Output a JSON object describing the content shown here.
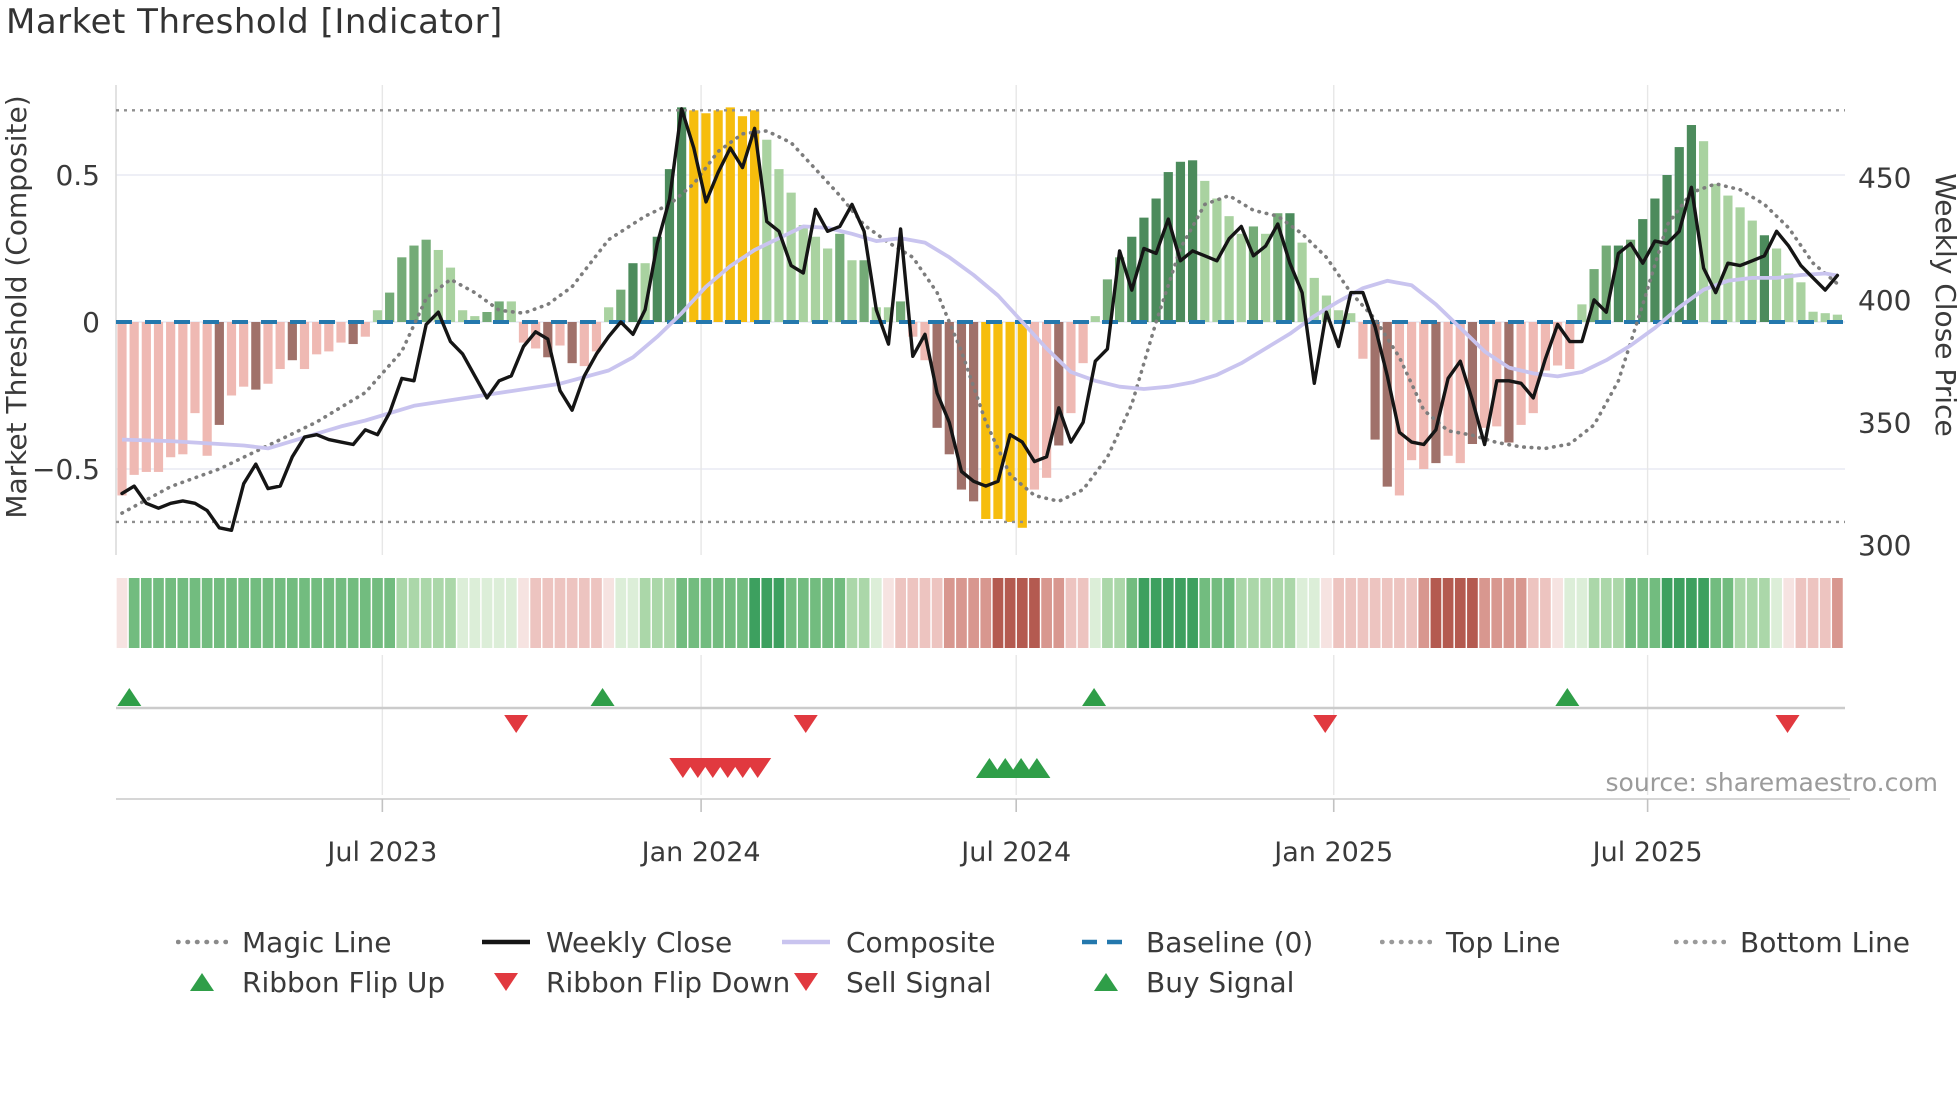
{
  "title": "Market Threshold [Indicator]",
  "source": "source: sharemaestro.com",
  "chart_data": {
    "type": "bar+line",
    "x_unit": "week",
    "weeks_total": 142,
    "x_ticks": [
      {
        "week": 21.4,
        "label": "Jul 2023"
      },
      {
        "week": 47.6,
        "label": "Jan 2024"
      },
      {
        "week": 73.5,
        "label": "Jul 2024"
      },
      {
        "week": 99.6,
        "label": "Jan 2025"
      },
      {
        "week": 125.4,
        "label": "Jul 2025"
      }
    ],
    "left_axis": {
      "label": "Market Threshold (Composite)",
      "ticks": [
        0.5,
        0,
        -0.5
      ],
      "tick_labels": [
        "0.5",
        "0",
        "−0.5"
      ],
      "range": [
        -0.81,
        0.81
      ]
    },
    "right_axis": {
      "label": "Weekly Close Price",
      "ticks": [
        450,
        400,
        350,
        300
      ],
      "tick_labels": [
        "450",
        "400",
        "350",
        "300"
      ],
      "price_at_zero_composite": 391,
      "price_per_composite_unit": 120
    },
    "reference_lines": {
      "top_line": 0.72,
      "bottom_line": -0.68,
      "baseline": 0
    },
    "grid": {
      "h_gridlines_at": [
        0.5,
        0,
        -0.5
      ],
      "v_gridlines_at_ticks": true
    },
    "threshold_bars": {
      "palette": {
        "p": "#efb9b3",
        "d": "#a0716a",
        "y": "#f6bd0d",
        "l": "#a9d2a0",
        "g": "#74ab77",
        "G": "#4c8b5c"
      },
      "values": [
        -0.59,
        -0.52,
        -0.51,
        -0.51,
        -0.46,
        -0.45,
        -0.31,
        -0.455,
        -0.35,
        -0.25,
        -0.22,
        -0.23,
        -0.21,
        -0.16,
        -0.13,
        -0.16,
        -0.11,
        -0.1,
        -0.07,
        -0.075,
        -0.05,
        0.04,
        0.1,
        0.22,
        0.26,
        0.28,
        0.245,
        0.185,
        0.04,
        0.02,
        0.034,
        0.07,
        0.07,
        -0.07,
        -0.09,
        -0.12,
        -0.08,
        -0.14,
        -0.15,
        -0.1,
        0.05,
        0.11,
        0.2,
        0.2,
        0.29,
        0.52,
        0.73,
        0.72,
        0.71,
        0.72,
        0.73,
        0.7,
        0.72,
        0.62,
        0.52,
        0.44,
        0.33,
        0.29,
        0.25,
        0.3,
        0.21,
        0.21,
        0.05,
        0.05,
        0.07,
        -0.05,
        -0.13,
        -0.36,
        -0.45,
        -0.57,
        -0.61,
        -0.67,
        -0.67,
        -0.68,
        -0.7,
        -0.57,
        -0.53,
        -0.42,
        -0.31,
        -0.14,
        0.02,
        0.145,
        0.22,
        0.29,
        0.355,
        0.42,
        0.51,
        0.545,
        0.55,
        0.48,
        0.42,
        0.36,
        0.3,
        0.325,
        0.3,
        0.37,
        0.37,
        0.27,
        0.15,
        0.09,
        0.04,
        0.03,
        -0.125,
        -0.4,
        -0.56,
        -0.59,
        -0.47,
        -0.5,
        -0.48,
        -0.455,
        -0.48,
        -0.415,
        -0.36,
        -0.355,
        -0.41,
        -0.35,
        -0.31,
        -0.165,
        -0.148,
        -0.16,
        0.06,
        0.18,
        0.26,
        0.26,
        0.28,
        0.35,
        0.42,
        0.5,
        0.595,
        0.67,
        0.615,
        0.47,
        0.43,
        0.39,
        0.345,
        0.295,
        0.25,
        0.165,
        0.135,
        0.035,
        0.03,
        0.025
      ],
      "colors": [
        "p",
        "p",
        "p",
        "p",
        "p",
        "p",
        "p",
        "p",
        "d",
        "p",
        "p",
        "d",
        "p",
        "p",
        "d",
        "p",
        "p",
        "p",
        "p",
        "d",
        "p",
        "l",
        "g",
        "g",
        "g",
        "g",
        "l",
        "l",
        "l",
        "l",
        "g",
        "g",
        "l",
        "p",
        "p",
        "d",
        "p",
        "d",
        "p",
        "p",
        "l",
        "g",
        "G",
        "l",
        "G",
        "G",
        "G",
        "y",
        "y",
        "y",
        "y",
        "y",
        "y",
        "l",
        "l",
        "l",
        "l",
        "l",
        "l",
        "g",
        "l",
        "g",
        "l",
        "l",
        "g",
        "p",
        "p",
        "d",
        "d",
        "d",
        "d",
        "y",
        "y",
        "y",
        "y",
        "p",
        "p",
        "d",
        "p",
        "p",
        "l",
        "g",
        "g",
        "G",
        "G",
        "G",
        "G",
        "G",
        "G",
        "l",
        "l",
        "l",
        "l",
        "g",
        "l",
        "g",
        "G",
        "l",
        "l",
        "l",
        "l",
        "l",
        "p",
        "d",
        "d",
        "p",
        "p",
        "p",
        "d",
        "p",
        "p",
        "d",
        "p",
        "p",
        "d",
        "p",
        "p",
        "p",
        "p",
        "p",
        "l",
        "g",
        "g",
        "G",
        "g",
        "G",
        "G",
        "G",
        "G",
        "G",
        "l",
        "l",
        "l",
        "l",
        "l",
        "G",
        "l",
        "l",
        "l",
        "l",
        "l",
        "l"
      ]
    },
    "weekly_close": [
      321,
      324,
      317,
      315,
      317,
      318,
      317,
      314,
      307,
      306,
      325,
      333,
      323,
      324,
      336,
      344,
      345,
      343,
      342,
      341,
      347,
      345,
      354,
      368,
      367,
      390,
      395,
      383,
      378,
      369,
      360,
      367,
      369,
      381,
      387,
      384,
      363,
      355,
      369,
      378,
      385,
      391,
      386,
      396,
      423,
      441,
      478,
      462,
      440,
      452,
      462,
      454,
      470,
      432,
      428,
      414,
      411,
      437,
      428,
      430,
      439,
      428,
      396,
      382,
      429,
      377,
      386,
      362,
      350,
      330,
      326,
      324,
      326,
      345,
      342,
      334,
      336,
      356,
      342,
      350,
      375,
      380,
      420,
      404,
      421,
      419,
      433,
      416,
      420,
      418,
      416,
      425,
      430,
      418,
      422,
      431,
      415,
      403,
      366,
      395,
      381,
      403,
      403,
      389,
      369,
      346,
      342,
      341,
      347,
      368,
      375,
      359,
      341,
      367,
      367,
      366,
      360,
      376,
      390,
      383,
      383,
      400,
      395,
      419,
      423,
      415,
      424,
      423,
      428,
      446,
      413,
      403,
      415,
      414,
      416,
      418,
      428,
      422,
      414,
      409,
      404,
      410
    ],
    "magic_line_points": [
      [
        0,
        -0.65
      ],
      [
        4,
        -0.56
      ],
      [
        8,
        -0.5
      ],
      [
        12,
        -0.42
      ],
      [
        16,
        -0.34
      ],
      [
        20,
        -0.24
      ],
      [
        23,
        -0.1
      ],
      [
        25,
        0.08
      ],
      [
        27,
        0.145
      ],
      [
        29,
        0.1
      ],
      [
        31,
        0.04
      ],
      [
        33,
        0.03
      ],
      [
        35,
        0.06
      ],
      [
        37,
        0.12
      ],
      [
        40,
        0.28
      ],
      [
        43,
        0.36
      ],
      [
        45,
        0.4
      ],
      [
        47,
        0.47
      ],
      [
        49,
        0.58
      ],
      [
        51,
        0.64
      ],
      [
        53,
        0.65
      ],
      [
        55,
        0.61
      ],
      [
        57,
        0.52
      ],
      [
        59,
        0.43
      ],
      [
        61,
        0.33
      ],
      [
        63,
        0.27
      ],
      [
        65,
        0.22
      ],
      [
        67,
        0.1
      ],
      [
        69,
        -0.1
      ],
      [
        71,
        -0.34
      ],
      [
        73,
        -0.52
      ],
      [
        75,
        -0.59
      ],
      [
        77,
        -0.61
      ],
      [
        79,
        -0.57
      ],
      [
        81,
        -0.46
      ],
      [
        83,
        -0.28
      ],
      [
        85,
        0.0
      ],
      [
        87,
        0.25
      ],
      [
        89,
        0.4
      ],
      [
        91,
        0.43
      ],
      [
        93,
        0.38
      ],
      [
        95,
        0.36
      ],
      [
        97,
        0.3
      ],
      [
        99,
        0.22
      ],
      [
        101,
        0.1
      ],
      [
        103,
        0.01
      ],
      [
        105,
        -0.12
      ],
      [
        107,
        -0.3
      ],
      [
        109,
        -0.37
      ],
      [
        111,
        -0.385
      ],
      [
        113,
        -0.41
      ],
      [
        115,
        -0.425
      ],
      [
        117,
        -0.43
      ],
      [
        119,
        -0.415
      ],
      [
        121,
        -0.35
      ],
      [
        123,
        -0.2
      ],
      [
        125,
        0.06
      ],
      [
        127,
        0.33
      ],
      [
        129,
        0.44
      ],
      [
        131,
        0.47
      ],
      [
        133,
        0.45
      ],
      [
        135,
        0.4
      ],
      [
        137,
        0.32
      ],
      [
        139,
        0.2
      ],
      [
        141,
        0.13
      ]
    ],
    "composite_points": [
      [
        0,
        -0.4
      ],
      [
        4,
        -0.405
      ],
      [
        8,
        -0.415
      ],
      [
        10,
        -0.42
      ],
      [
        12,
        -0.43
      ],
      [
        14,
        -0.405
      ],
      [
        16,
        -0.38
      ],
      [
        18,
        -0.355
      ],
      [
        20,
        -0.335
      ],
      [
        24,
        -0.285
      ],
      [
        28,
        -0.26
      ],
      [
        32,
        -0.235
      ],
      [
        36,
        -0.21
      ],
      [
        40,
        -0.165
      ],
      [
        42,
        -0.12
      ],
      [
        44,
        -0.05
      ],
      [
        46,
        0.03
      ],
      [
        48,
        0.12
      ],
      [
        50,
        0.19
      ],
      [
        52,
        0.245
      ],
      [
        54,
        0.285
      ],
      [
        56,
        0.325
      ],
      [
        58,
        0.32
      ],
      [
        60,
        0.3
      ],
      [
        62,
        0.275
      ],
      [
        64,
        0.285
      ],
      [
        66,
        0.27
      ],
      [
        68,
        0.22
      ],
      [
        70,
        0.16
      ],
      [
        72,
        0.09
      ],
      [
        74,
        0.0
      ],
      [
        76,
        -0.09
      ],
      [
        78,
        -0.17
      ],
      [
        80,
        -0.2
      ],
      [
        82,
        -0.22
      ],
      [
        84,
        -0.228
      ],
      [
        86,
        -0.22
      ],
      [
        88,
        -0.205
      ],
      [
        90,
        -0.18
      ],
      [
        92,
        -0.14
      ],
      [
        94,
        -0.09
      ],
      [
        96,
        -0.04
      ],
      [
        98,
        0.02
      ],
      [
        100,
        0.07
      ],
      [
        102,
        0.115
      ],
      [
        104,
        0.14
      ],
      [
        106,
        0.125
      ],
      [
        108,
        0.06
      ],
      [
        110,
        -0.02
      ],
      [
        112,
        -0.1
      ],
      [
        114,
        -0.155
      ],
      [
        116,
        -0.175
      ],
      [
        118,
        -0.185
      ],
      [
        120,
        -0.17
      ],
      [
        122,
        -0.13
      ],
      [
        124,
        -0.08
      ],
      [
        126,
        -0.02
      ],
      [
        128,
        0.05
      ],
      [
        130,
        0.11
      ],
      [
        132,
        0.14
      ],
      [
        134,
        0.15
      ],
      [
        136,
        0.15
      ],
      [
        138,
        0.16
      ],
      [
        140,
        0.165
      ],
      [
        141,
        0.158
      ]
    ],
    "ribbon": {
      "palette": {
        "1": "#dceed8",
        "2": "#abd7a9",
        "3": "#72bc7f",
        "4": "#3da05f",
        "-1": "#f6e3e1",
        "-2": "#edc4c0",
        "-3": "#d8978f",
        "-4": "#b45a50"
      },
      "levels": [
        -1,
        3,
        3,
        3,
        3,
        3,
        3,
        3,
        3,
        3,
        3,
        3,
        3,
        3,
        3,
        3,
        3,
        3,
        3,
        3,
        3,
        3,
        3,
        2,
        2,
        2,
        2,
        2,
        1,
        1,
        1,
        1,
        1,
        -1,
        -2,
        -2,
        -2,
        -2,
        -2,
        -2,
        -1,
        1,
        1,
        2,
        2,
        2,
        3,
        3,
        3,
        3,
        3,
        3,
        4,
        4,
        4,
        3,
        3,
        3,
        3,
        3,
        2,
        2,
        1,
        -1,
        -2,
        -2,
        -2,
        -2,
        -3,
        -3,
        -3,
        -3,
        -4,
        -4,
        -4,
        -4,
        -3,
        -3,
        -2,
        -2,
        1,
        2,
        2,
        3,
        4,
        4,
        4,
        4,
        4,
        3,
        3,
        3,
        2,
        2,
        2,
        2,
        2,
        1,
        1,
        -1,
        -2,
        -2,
        -2,
        -2,
        -2,
        -2,
        -2,
        -3,
        -4,
        -4,
        -4,
        -4,
        -3,
        -3,
        -3,
        -3,
        -2,
        -2,
        -1,
        1,
        1,
        2,
        2,
        2,
        3,
        3,
        3,
        4,
        4,
        4,
        4,
        3,
        3,
        2,
        2,
        2,
        1,
        -1,
        -2,
        -2,
        -2,
        -3
      ]
    },
    "signals": {
      "flip_up_color": "#2f9e48",
      "flip_down_color": "#e1393f",
      "ribbon_flip_up_weeks": [
        0.6,
        39.5,
        79.9,
        118.8
      ],
      "ribbon_flip_down_weeks": [
        32.4,
        56.2,
        98.9,
        136.9
      ],
      "sell_signal_weeks": [
        46.1,
        47.33,
        48.56,
        49.79,
        51.02,
        52.25
      ],
      "buy_signal_weeks": [
        71.3,
        72.6,
        73.9,
        75.2
      ]
    },
    "line_colors": {
      "magic": "#7d7d7d",
      "weekly_close": "#151515",
      "composite": "#c9c4ef",
      "baseline": "#2478ad",
      "top_bottom": "#8f8f8f"
    }
  },
  "legend": {
    "rows": [
      [
        {
          "type": "dotted",
          "color": "#8a8a8a",
          "label": "Magic Line"
        },
        {
          "type": "solid",
          "color": "#151515",
          "label": "Weekly Close"
        },
        {
          "type": "solid",
          "color": "#c9c4ef",
          "label": "Composite"
        },
        {
          "type": "dashed",
          "color": "#2478ad",
          "label": "Baseline (0)"
        },
        {
          "type": "dotted",
          "color": "#9a9a9a",
          "label": "Top Line"
        },
        {
          "type": "dotted",
          "color": "#9a9a9a",
          "label": "Bottom Line"
        }
      ],
      [
        {
          "type": "tri-up",
          "color": "#2f9e48",
          "label": "Ribbon Flip Up"
        },
        {
          "type": "tri-down",
          "color": "#e1393f",
          "label": "Ribbon Flip Down"
        },
        {
          "type": "tri-down",
          "color": "#e1393f",
          "label": "Sell Signal"
        },
        {
          "type": "tri-up",
          "color": "#2f9e48",
          "label": "Buy Signal"
        }
      ]
    ]
  }
}
